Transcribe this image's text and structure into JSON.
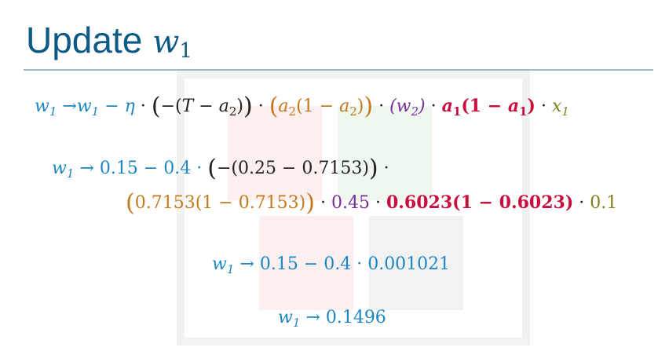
{
  "title": {
    "text": "Update",
    "var": "w",
    "sub": "1"
  },
  "eq1": {
    "lhs_var": "w",
    "lhs_sub": "1",
    "arrow": "→",
    "rhs_var": "w",
    "rhs_sub": "1",
    "minus": "−",
    "eta": "η",
    "dot": "·",
    "open_big": "(",
    "neg_open": "−(",
    "T": "T",
    "minus_a": "− ",
    "a2_var": "a",
    "a2_sub": "2",
    "close_inner": ")",
    "close_big": ")",
    "grp2_a": "a",
    "grp2_sub": "2",
    "grp2_mid": "(1 − ",
    "grp2_a2": "a",
    "grp2_sub2": "2",
    "grp2_close": ")",
    "grp3": "(w",
    "grp3_sub": "2",
    "grp3_close": ")",
    "grp4_a": "a",
    "grp4_sub": "1",
    "grp4_mid": "(1 − ",
    "grp4_a2": "a",
    "grp4_sub2": "1",
    "grp4_close": ")",
    "x_var": "x",
    "x_sub": "1"
  },
  "eq2": {
    "lhs_var": "w",
    "lhs_sub": "1",
    "arrow": "→",
    "part1": "0.15 − 0.4 ·",
    "neg_part": "−(0.25 − 0.7153)",
    "trail_dot": "·",
    "orange_inner": "0.7153(1 − 0.7153)",
    "dot": "·",
    "purple": "0.45",
    "red": "0.6023(1 − 0.6023)",
    "olive": "0.1"
  },
  "eq3": {
    "lhs_var": "w",
    "lhs_sub": "1",
    "arrow": "→",
    "rhs": "0.15 − 0.4 · 0.001021"
  },
  "eq4": {
    "lhs_var": "w",
    "lhs_sub": "1",
    "arrow": "→",
    "rhs": "0.1496"
  },
  "colors": {
    "title": "#0d5a86",
    "blue": "#1b86c4",
    "orange": "#c47a1c",
    "purple": "#7b2d9a",
    "red": "#c8103f",
    "olive": "#857e1b"
  }
}
